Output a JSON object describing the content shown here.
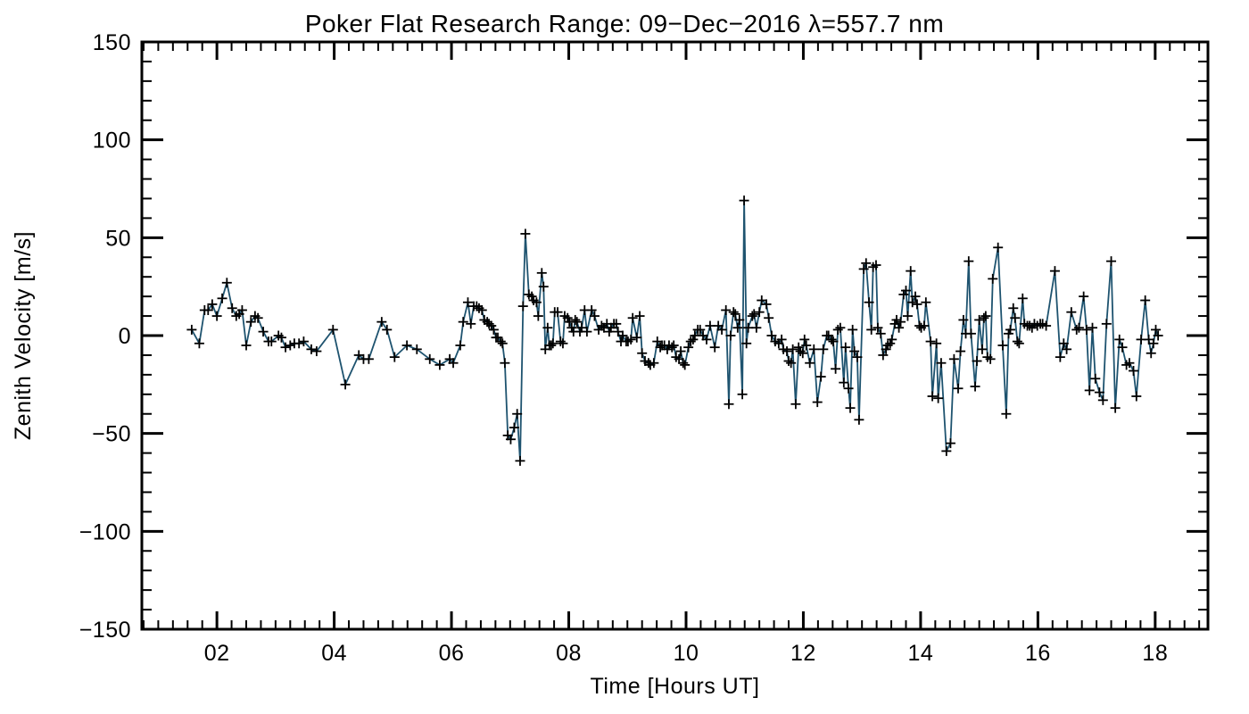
{
  "figure": {
    "title": "Poker Flat Research Range: 09−Dec−2016 λ=557.7 nm",
    "xlabel": "Time [Hours UT]",
    "ylabel": "Zenith Velocity [m/s]"
  },
  "chart_data": {
    "type": "line",
    "title": "Poker Flat Research Range: 09−Dec−2016 λ=557.7 nm",
    "xlabel": "Time [Hours UT]",
    "ylabel": "Zenith Velocity [m/s]",
    "xlim": [
      0.72,
      18.9
    ],
    "ylim": [
      -150,
      150
    ],
    "x_major_ticks": [
      2,
      4,
      6,
      8,
      10,
      12,
      14,
      16,
      18
    ],
    "x_tick_labels": [
      "02",
      "04",
      "06",
      "08",
      "10",
      "12",
      "14",
      "16",
      "18"
    ],
    "x_minor_step": 0.25,
    "y_major_ticks": [
      -150,
      -100,
      -50,
      0,
      50,
      100,
      150
    ],
    "y_tick_labels": [
      "−150",
      "−100",
      "−50",
      "0",
      "50",
      "100",
      "150"
    ],
    "y_minor_step": 10,
    "grid": false,
    "legend_position": "none",
    "marker": "plus",
    "line_color": "#1e536f",
    "marker_color": "#000000",
    "axis_color": "#000000",
    "series": [
      {
        "name": "zenith_velocity_m_per_s",
        "points": [
          [
            1.57,
            3
          ],
          [
            1.7,
            -4
          ],
          [
            1.79,
            13
          ],
          [
            1.85,
            13
          ],
          [
            1.92,
            16
          ],
          [
            2.0,
            10
          ],
          [
            2.09,
            19
          ],
          [
            2.17,
            27
          ],
          [
            2.26,
            14
          ],
          [
            2.33,
            10
          ],
          [
            2.38,
            11
          ],
          [
            2.43,
            13
          ],
          [
            2.5,
            -5
          ],
          [
            2.58,
            7
          ],
          [
            2.65,
            10
          ],
          [
            2.7,
            9
          ],
          [
            2.79,
            2
          ],
          [
            2.88,
            -3
          ],
          [
            2.93,
            -3
          ],
          [
            3.05,
            0
          ],
          [
            3.1,
            -1
          ],
          [
            3.17,
            -6
          ],
          [
            3.25,
            -5
          ],
          [
            3.32,
            -4
          ],
          [
            3.4,
            -4
          ],
          [
            3.48,
            -3
          ],
          [
            3.61,
            -7
          ],
          [
            3.7,
            -8
          ],
          [
            3.98,
            3
          ],
          [
            4.19,
            -25
          ],
          [
            4.42,
            -10
          ],
          [
            4.5,
            -12
          ],
          [
            4.59,
            -12
          ],
          [
            4.81,
            7
          ],
          [
            4.9,
            3
          ],
          [
            5.03,
            -11
          ],
          [
            5.24,
            -5
          ],
          [
            5.41,
            -7
          ],
          [
            5.63,
            -12
          ],
          [
            5.8,
            -15
          ],
          [
            5.97,
            -12
          ],
          [
            6.03,
            -14
          ],
          [
            6.15,
            -5
          ],
          [
            6.2,
            7
          ],
          [
            6.28,
            17
          ],
          [
            6.33,
            6
          ],
          [
            6.38,
            15
          ],
          [
            6.43,
            15
          ],
          [
            6.47,
            14
          ],
          [
            6.52,
            13
          ],
          [
            6.56,
            8
          ],
          [
            6.61,
            7
          ],
          [
            6.64,
            6
          ],
          [
            6.68,
            5
          ],
          [
            6.72,
            3
          ],
          [
            6.76,
            -1
          ],
          [
            6.79,
            -1
          ],
          [
            6.84,
            -3
          ],
          [
            6.87,
            -4
          ],
          [
            6.91,
            -14
          ],
          [
            6.96,
            -51
          ],
          [
            7.01,
            -53
          ],
          [
            7.07,
            -47
          ],
          [
            7.12,
            -40
          ],
          [
            7.17,
            -64
          ],
          [
            7.22,
            15
          ],
          [
            7.26,
            52
          ],
          [
            7.32,
            21
          ],
          [
            7.37,
            20
          ],
          [
            7.4,
            18
          ],
          [
            7.45,
            17
          ],
          [
            7.48,
            10
          ],
          [
            7.54,
            32
          ],
          [
            7.57,
            25
          ],
          [
            7.6,
            -7
          ],
          [
            7.64,
            4
          ],
          [
            7.67,
            -5
          ],
          [
            7.7,
            -5
          ],
          [
            7.73,
            -4
          ],
          [
            7.76,
            12
          ],
          [
            7.81,
            12
          ],
          [
            7.86,
            -3
          ],
          [
            7.9,
            -4
          ],
          [
            7.93,
            10
          ],
          [
            7.98,
            9
          ],
          [
            8.01,
            7
          ],
          [
            8.05,
            4
          ],
          [
            8.08,
            2
          ],
          [
            8.11,
            8
          ],
          [
            8.14,
            7
          ],
          [
            8.19,
            2
          ],
          [
            8.22,
            4
          ],
          [
            8.27,
            13
          ],
          [
            8.31,
            2
          ],
          [
            8.39,
            13
          ],
          [
            8.44,
            10
          ],
          [
            8.51,
            3
          ],
          [
            8.56,
            5
          ],
          [
            8.6,
            4
          ],
          [
            8.65,
            6
          ],
          [
            8.69,
            2
          ],
          [
            8.72,
            4
          ],
          [
            8.77,
            6
          ],
          [
            8.81,
            6
          ],
          [
            8.84,
            2
          ],
          [
            8.89,
            -3
          ],
          [
            8.92,
            0
          ],
          [
            8.98,
            -3
          ],
          [
            9.01,
            -3
          ],
          [
            9.06,
            -2
          ],
          [
            9.09,
            9
          ],
          [
            9.16,
            -1
          ],
          [
            9.21,
            10
          ],
          [
            9.25,
            -9
          ],
          [
            9.3,
            -13
          ],
          [
            9.36,
            -14
          ],
          [
            9.39,
            -15
          ],
          [
            9.45,
            -14
          ],
          [
            9.51,
            -3
          ],
          [
            9.56,
            -6
          ],
          [
            9.59,
            -5
          ],
          [
            9.63,
            -5
          ],
          [
            9.68,
            -7
          ],
          [
            9.71,
            -5
          ],
          [
            9.76,
            -6
          ],
          [
            9.79,
            -5
          ],
          [
            9.83,
            -11
          ],
          [
            9.88,
            -12
          ],
          [
            9.91,
            -8
          ],
          [
            9.95,
            -14
          ],
          [
            9.98,
            -15
          ],
          [
            10.04,
            -6
          ],
          [
            10.08,
            -3
          ],
          [
            10.12,
            -2
          ],
          [
            10.15,
            0
          ],
          [
            10.2,
            3
          ],
          [
            10.24,
            3
          ],
          [
            10.29,
            0
          ],
          [
            10.35,
            -2
          ],
          [
            10.41,
            5
          ],
          [
            10.49,
            -6
          ],
          [
            10.55,
            5
          ],
          [
            10.61,
            3
          ],
          [
            10.68,
            13
          ],
          [
            10.73,
            -35
          ],
          [
            10.76,
            0
          ],
          [
            10.81,
            12
          ],
          [
            10.84,
            11
          ],
          [
            10.88,
            4
          ],
          [
            10.91,
            8
          ],
          [
            10.96,
            -30
          ],
          [
            10.99,
            69
          ],
          [
            11.03,
            -4
          ],
          [
            11.06,
            4
          ],
          [
            11.13,
            10
          ],
          [
            11.16,
            11
          ],
          [
            11.2,
            4
          ],
          [
            11.25,
            12
          ],
          [
            11.29,
            18
          ],
          [
            11.37,
            16
          ],
          [
            11.41,
            9
          ],
          [
            11.46,
            0
          ],
          [
            11.52,
            -3
          ],
          [
            11.58,
            -4
          ],
          [
            11.63,
            -2
          ],
          [
            11.66,
            -7
          ],
          [
            11.72,
            -8
          ],
          [
            11.75,
            -13
          ],
          [
            11.79,
            -14
          ],
          [
            11.82,
            -7
          ],
          [
            11.87,
            -35
          ],
          [
            11.92,
            -6
          ],
          [
            11.95,
            -8
          ],
          [
            11.99,
            -9
          ],
          [
            12.02,
            -2
          ],
          [
            12.05,
            -5
          ],
          [
            12.11,
            -14
          ],
          [
            12.18,
            -7
          ],
          [
            12.24,
            -34
          ],
          [
            12.3,
            -21
          ],
          [
            12.34,
            -7
          ],
          [
            12.4,
            0
          ],
          [
            12.43,
            0
          ],
          [
            12.48,
            -2
          ],
          [
            12.51,
            -3
          ],
          [
            12.55,
            -17
          ],
          [
            12.59,
            3
          ],
          [
            12.63,
            4
          ],
          [
            12.69,
            -24
          ],
          [
            12.72,
            -6
          ],
          [
            12.77,
            -27
          ],
          [
            12.8,
            -37
          ],
          [
            12.84,
            3
          ],
          [
            12.87,
            -8
          ],
          [
            12.92,
            -11
          ],
          [
            12.95,
            -43
          ],
          [
            13.03,
            34
          ],
          [
            13.07,
            37
          ],
          [
            13.12,
            17
          ],
          [
            13.16,
            3
          ],
          [
            13.19,
            35
          ],
          [
            13.24,
            36
          ],
          [
            13.27,
            4
          ],
          [
            13.32,
            1
          ],
          [
            13.36,
            -10
          ],
          [
            13.41,
            -7
          ],
          [
            13.44,
            -5
          ],
          [
            13.48,
            -4
          ],
          [
            13.51,
            -2
          ],
          [
            13.56,
            6
          ],
          [
            13.59,
            8
          ],
          [
            13.63,
            4
          ],
          [
            13.66,
            7
          ],
          [
            13.71,
            21
          ],
          [
            13.75,
            23
          ],
          [
            13.78,
            10
          ],
          [
            13.83,
            33
          ],
          [
            13.86,
            17
          ],
          [
            13.91,
            20
          ],
          [
            13.94,
            16
          ],
          [
            13.98,
            5
          ],
          [
            14.01,
            4
          ],
          [
            14.06,
            5
          ],
          [
            14.09,
            17
          ],
          [
            14.17,
            -3
          ],
          [
            14.2,
            -31
          ],
          [
            14.27,
            -4
          ],
          [
            14.3,
            -32
          ],
          [
            14.35,
            -14
          ],
          [
            14.44,
            -59
          ],
          [
            14.51,
            -55
          ],
          [
            14.57,
            -12
          ],
          [
            14.64,
            -27
          ],
          [
            14.68,
            -8
          ],
          [
            14.73,
            8
          ],
          [
            14.77,
            1
          ],
          [
            14.82,
            38
          ],
          [
            14.86,
            1
          ],
          [
            14.93,
            -26
          ],
          [
            14.96,
            -13
          ],
          [
            15.0,
            8
          ],
          [
            15.05,
            -7
          ],
          [
            15.08,
            9
          ],
          [
            15.11,
            10
          ],
          [
            15.14,
            -11
          ],
          [
            15.19,
            -12
          ],
          [
            15.23,
            29
          ],
          [
            15.32,
            45
          ],
          [
            15.4,
            -5
          ],
          [
            15.46,
            -40
          ],
          [
            15.5,
            1
          ],
          [
            15.53,
            3
          ],
          [
            15.58,
            14
          ],
          [
            15.61,
            9
          ],
          [
            15.65,
            -3
          ],
          [
            15.68,
            -4
          ],
          [
            15.74,
            19
          ],
          [
            15.77,
            6
          ],
          [
            15.82,
            5
          ],
          [
            15.86,
            5
          ],
          [
            15.9,
            4
          ],
          [
            15.94,
            6
          ],
          [
            15.99,
            5
          ],
          [
            16.04,
            6
          ],
          [
            16.08,
            6
          ],
          [
            16.14,
            5
          ],
          [
            16.29,
            33
          ],
          [
            16.38,
            -11
          ],
          [
            16.44,
            -4
          ],
          [
            16.49,
            -7
          ],
          [
            16.57,
            12
          ],
          [
            16.66,
            3
          ],
          [
            16.7,
            4
          ],
          [
            16.78,
            20
          ],
          [
            16.83,
            3
          ],
          [
            16.88,
            -28
          ],
          [
            16.93,
            4
          ],
          [
            16.98,
            -22
          ],
          [
            17.05,
            -29
          ],
          [
            17.11,
            -33
          ],
          [
            17.17,
            6
          ],
          [
            17.25,
            38
          ],
          [
            17.32,
            -37
          ],
          [
            17.39,
            -2
          ],
          [
            17.44,
            -6
          ],
          [
            17.51,
            -15
          ],
          [
            17.56,
            -14
          ],
          [
            17.63,
            -18
          ],
          [
            17.68,
            -31
          ],
          [
            17.76,
            -2
          ],
          [
            17.83,
            18
          ],
          [
            17.89,
            -2
          ],
          [
            17.93,
            -9
          ],
          [
            17.97,
            -4
          ],
          [
            18.01,
            3
          ],
          [
            18.05,
            0
          ]
        ]
      }
    ]
  }
}
